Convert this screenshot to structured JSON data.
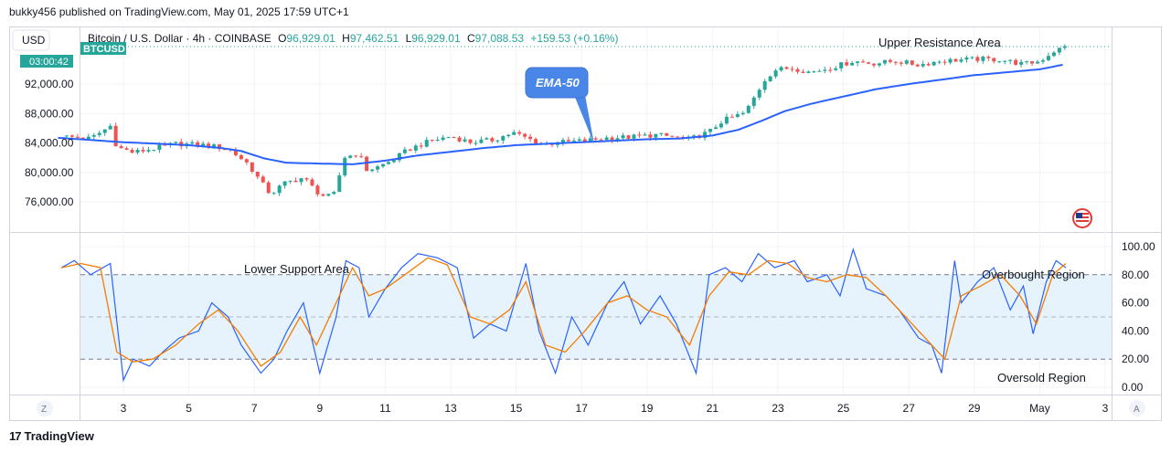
{
  "publisher": "bukky456 published on TradingView.com, May 01, 2025 17:59 UTC+1",
  "footer_brand": "TradingView",
  "footer_mark": "17",
  "currency_label": "USD",
  "bottom_left_btn": "Z",
  "bottom_right_btn": "A",
  "ticker_badge": "BTCUSD",
  "countdown": "03:00:42",
  "colors": {
    "up": "#26a69a",
    "down": "#ef5350",
    "ema": "#2962ff",
    "stoch_k": "#2962ff",
    "stoch_d": "#f57c00",
    "band_fill": "#e3f2fd",
    "ticker_bg": "#26a69a",
    "callout_bg": "#4a86e8"
  },
  "symbol_header": {
    "name": "Bitcoin / U.S. Dollar · 4h · COINBASE",
    "o_label": "O",
    "o_value": "96,929.01",
    "h_label": "H",
    "h_value": "97,462.51",
    "l_label": "L",
    "l_value": "96,929.01",
    "c_label": "C",
    "c_value": "97,088.53",
    "change": "+159.53 (+0.16%)"
  },
  "annotations": {
    "upper_resistance": "Upper Resistance Area",
    "lower_support": "Lower Support Area",
    "overbought": "Overbought Region",
    "oversold": "Oversold Region",
    "ema_callout": "EMA-50"
  },
  "price_axis": {
    "ticks": [
      {
        "value": 92000,
        "label": "92,000.00"
      },
      {
        "value": 88000,
        "label": "88,000.00"
      },
      {
        "value": 84000,
        "label": "84,000.00"
      },
      {
        "value": 80000,
        "label": "80,000.00"
      },
      {
        "value": 76000,
        "label": "76,000.00"
      }
    ]
  },
  "osc_axis": {
    "ticks": [
      {
        "value": 100,
        "label": "100.00"
      },
      {
        "value": 80,
        "label": "80.00"
      },
      {
        "value": 60,
        "label": "60.00"
      },
      {
        "value": 40,
        "label": "40.00"
      },
      {
        "value": 20,
        "label": "20.00"
      },
      {
        "value": 0,
        "label": "0.00"
      }
    ]
  },
  "chart_data": {
    "type": "candlestick",
    "x_ticks": [
      {
        "day": 3,
        "label": "3"
      },
      {
        "day": 5,
        "label": "5"
      },
      {
        "day": 7,
        "label": "7"
      },
      {
        "day": 9,
        "label": "9"
      },
      {
        "day": 11,
        "label": "11"
      },
      {
        "day": 13,
        "label": "13"
      },
      {
        "day": 15,
        "label": "15"
      },
      {
        "day": 17,
        "label": "17"
      },
      {
        "day": 19,
        "label": "19"
      },
      {
        "day": 21,
        "label": "21"
      },
      {
        "day": 23,
        "label": "23"
      },
      {
        "day": 25,
        "label": "25"
      },
      {
        "day": 27,
        "label": "27"
      },
      {
        "day": 29,
        "label": "29"
      },
      {
        "day": 31,
        "label": "May"
      },
      {
        "day": 33,
        "label": "3"
      }
    ],
    "close_anchors": [
      [
        1.1,
        84900
      ],
      [
        2.0,
        84600
      ],
      [
        2.6,
        86300
      ],
      [
        2.8,
        83400
      ],
      [
        3.3,
        82700
      ],
      [
        4.0,
        83300
      ],
      [
        4.6,
        83900
      ],
      [
        5.5,
        83700
      ],
      [
        6.2,
        83200
      ],
      [
        6.8,
        81200
      ],
      [
        7.2,
        78700
      ],
      [
        7.5,
        77000
      ],
      [
        7.9,
        78500
      ],
      [
        8.5,
        79300
      ],
      [
        8.9,
        77400
      ],
      [
        9.2,
        76600
      ],
      [
        9.5,
        77200
      ],
      [
        9.7,
        82000
      ],
      [
        10.2,
        82600
      ],
      [
        10.4,
        80300
      ],
      [
        10.7,
        80600
      ],
      [
        11.2,
        81600
      ],
      [
        11.7,
        83100
      ],
      [
        12.4,
        84300
      ],
      [
        13.0,
        84900
      ],
      [
        13.6,
        84100
      ],
      [
        14.3,
        84400
      ],
      [
        14.9,
        85400
      ],
      [
        15.3,
        84700
      ],
      [
        15.8,
        83800
      ],
      [
        16.4,
        84100
      ],
      [
        17.1,
        84300
      ],
      [
        17.8,
        84700
      ],
      [
        18.5,
        84800
      ],
      [
        19.3,
        85100
      ],
      [
        20.3,
        84500
      ],
      [
        20.9,
        85500
      ],
      [
        21.3,
        87000
      ],
      [
        22.0,
        88100
      ],
      [
        22.6,
        92600
      ],
      [
        22.9,
        93900
      ],
      [
        23.4,
        94200
      ],
      [
        24.0,
        93600
      ],
      [
        24.6,
        94200
      ],
      [
        25.3,
        95100
      ],
      [
        25.9,
        94800
      ],
      [
        26.6,
        95100
      ],
      [
        27.3,
        94600
      ],
      [
        27.9,
        95100
      ],
      [
        28.6,
        95300
      ],
      [
        29.2,
        95400
      ],
      [
        29.8,
        95300
      ],
      [
        30.5,
        94700
      ],
      [
        31.0,
        95100
      ],
      [
        31.4,
        96400
      ],
      [
        31.8,
        97090
      ]
    ],
    "ema_anchors": [
      [
        1,
        84700
      ],
      [
        3,
        84100
      ],
      [
        4,
        83900
      ],
      [
        5,
        83700
      ],
      [
        6,
        83300
      ],
      [
        6.6,
        82900
      ],
      [
        7.3,
        81900
      ],
      [
        8,
        81300
      ],
      [
        9,
        81200
      ],
      [
        10,
        81100
      ],
      [
        11,
        81600
      ],
      [
        12,
        82300
      ],
      [
        13,
        82800
      ],
      [
        14,
        83300
      ],
      [
        15,
        83700
      ],
      [
        16,
        83900
      ],
      [
        17,
        84100
      ],
      [
        18,
        84300
      ],
      [
        19,
        84500
      ],
      [
        20,
        84600
      ],
      [
        21,
        85000
      ],
      [
        21.8,
        85800
      ],
      [
        22.5,
        87000
      ],
      [
        23.2,
        88300
      ],
      [
        24,
        89300
      ],
      [
        25,
        90300
      ],
      [
        26,
        91300
      ],
      [
        27,
        92000
      ],
      [
        28,
        92600
      ],
      [
        29,
        93200
      ],
      [
        30,
        93600
      ],
      [
        31,
        94000
      ],
      [
        31.8,
        94700
      ]
    ],
    "stoch_k_anchors": [
      [
        1.1,
        85
      ],
      [
        1.5,
        90
      ],
      [
        2.0,
        80
      ],
      [
        2.6,
        88
      ],
      [
        3.0,
        5
      ],
      [
        3.3,
        20
      ],
      [
        3.8,
        15
      ],
      [
        4.2,
        25
      ],
      [
        4.7,
        35
      ],
      [
        5.3,
        40
      ],
      [
        5.7,
        60
      ],
      [
        6.2,
        50
      ],
      [
        6.6,
        30
      ],
      [
        7.2,
        10
      ],
      [
        7.6,
        20
      ],
      [
        8.0,
        40
      ],
      [
        8.5,
        60
      ],
      [
        9.0,
        10
      ],
      [
        9.5,
        50
      ],
      [
        9.8,
        90
      ],
      [
        10.2,
        85
      ],
      [
        10.5,
        50
      ],
      [
        11.0,
        70
      ],
      [
        11.5,
        85
      ],
      [
        12.0,
        95
      ],
      [
        12.6,
        92
      ],
      [
        13.2,
        85
      ],
      [
        13.7,
        35
      ],
      [
        14.2,
        45
      ],
      [
        14.7,
        40
      ],
      [
        15.3,
        88
      ],
      [
        15.7,
        40
      ],
      [
        16.2,
        10
      ],
      [
        16.7,
        50
      ],
      [
        17.2,
        30
      ],
      [
        17.8,
        60
      ],
      [
        18.3,
        75
      ],
      [
        18.8,
        45
      ],
      [
        19.4,
        65
      ],
      [
        19.9,
        45
      ],
      [
        20.5,
        10
      ],
      [
        20.9,
        80
      ],
      [
        21.4,
        85
      ],
      [
        21.9,
        75
      ],
      [
        22.4,
        95
      ],
      [
        22.9,
        85
      ],
      [
        23.5,
        90
      ],
      [
        23.9,
        75
      ],
      [
        24.5,
        80
      ],
      [
        24.9,
        65
      ],
      [
        25.3,
        98
      ],
      [
        25.7,
        70
      ],
      [
        26.3,
        65
      ],
      [
        26.7,
        55
      ],
      [
        27.3,
        35
      ],
      [
        27.7,
        30
      ],
      [
        28.0,
        10
      ],
      [
        28.4,
        90
      ],
      [
        28.6,
        60
      ],
      [
        29.1,
        75
      ],
      [
        29.6,
        85
      ],
      [
        30.1,
        55
      ],
      [
        30.5,
        72
      ],
      [
        30.8,
        38
      ],
      [
        31.2,
        75
      ],
      [
        31.5,
        90
      ],
      [
        31.8,
        85
      ]
    ],
    "stoch_d_anchors": [
      [
        1.1,
        85
      ],
      [
        1.7,
        88
      ],
      [
        2.3,
        85
      ],
      [
        2.8,
        25
      ],
      [
        3.3,
        18
      ],
      [
        3.9,
        20
      ],
      [
        4.6,
        30
      ],
      [
        5.3,
        45
      ],
      [
        5.9,
        55
      ],
      [
        6.5,
        40
      ],
      [
        7.2,
        15
      ],
      [
        7.8,
        25
      ],
      [
        8.4,
        50
      ],
      [
        8.9,
        30
      ],
      [
        9.5,
        60
      ],
      [
        10.0,
        85
      ],
      [
        10.5,
        65
      ],
      [
        11.0,
        70
      ],
      [
        11.6,
        80
      ],
      [
        12.3,
        92
      ],
      [
        12.9,
        87
      ],
      [
        13.6,
        50
      ],
      [
        14.2,
        45
      ],
      [
        14.8,
        55
      ],
      [
        15.3,
        75
      ],
      [
        15.9,
        30
      ],
      [
        16.5,
        25
      ],
      [
        17.1,
        40
      ],
      [
        17.8,
        60
      ],
      [
        18.4,
        65
      ],
      [
        19.0,
        55
      ],
      [
        19.6,
        50
      ],
      [
        20.3,
        30
      ],
      [
        20.9,
        65
      ],
      [
        21.5,
        82
      ],
      [
        22.1,
        80
      ],
      [
        22.7,
        90
      ],
      [
        23.3,
        88
      ],
      [
        23.9,
        78
      ],
      [
        24.5,
        75
      ],
      [
        25.1,
        80
      ],
      [
        25.7,
        78
      ],
      [
        26.3,
        65
      ],
      [
        26.9,
        50
      ],
      [
        27.5,
        35
      ],
      [
        28.1,
        20
      ],
      [
        28.6,
        65
      ],
      [
        29.2,
        72
      ],
      [
        29.8,
        80
      ],
      [
        30.4,
        65
      ],
      [
        30.9,
        45
      ],
      [
        31.4,
        80
      ],
      [
        31.8,
        88
      ]
    ],
    "price_ylim": [
      73500,
      99000
    ],
    "osc_ylim": [
      -4,
      106
    ],
    "overbought_level": 80,
    "oversold_level": 20,
    "mid_level": 50
  }
}
